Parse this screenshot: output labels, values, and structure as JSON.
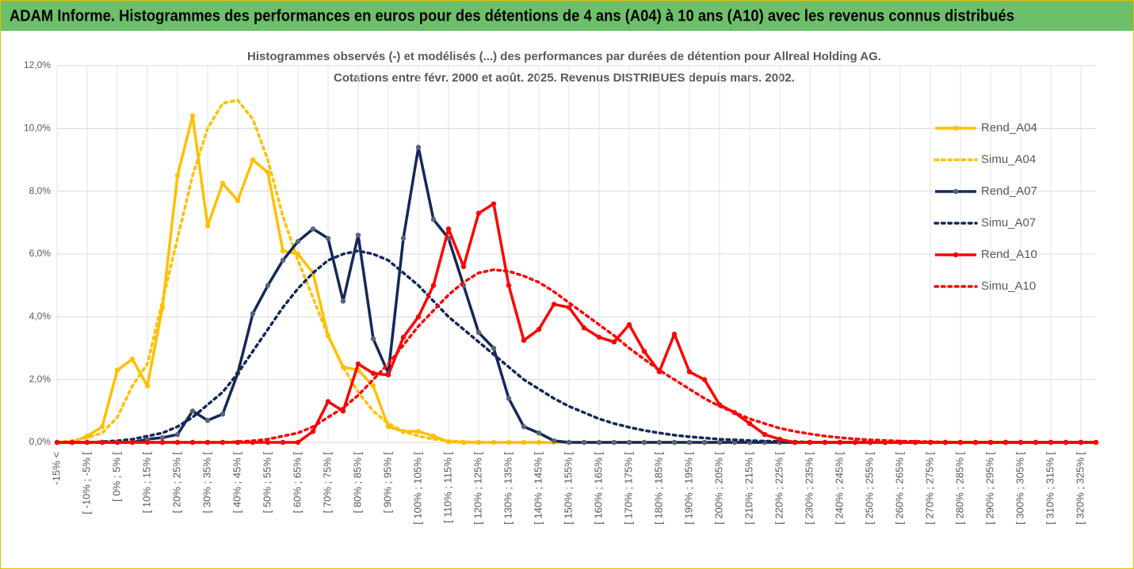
{
  "header": {
    "title": "ADAM Informe. Histogrammes des performances en euros pour des détentions de 4 ans (A04) à 10 ans (A10) avec les revenus connus distribués"
  },
  "chart_data": {
    "type": "line",
    "title": [
      "Histogrammes observés (-) et modélisés (...) des performances par durées de détention pour Allreal Holding AG.",
      "Cotations entre févr. 2000 et août. 2025. Revenus DISTRIBUES depuis mars. 2002."
    ],
    "categories": [
      "-15% <",
      null,
      "[ -10% ; -5% [",
      null,
      "[ 0% ; 5% [",
      null,
      "[ 10% ; 15% [",
      null,
      "[ 20% ; 25% [",
      null,
      "[ 30% ; 35% [",
      null,
      "[ 40% ; 45% [",
      null,
      "[ 50% ; 55% [",
      null,
      "[ 60% ; 65% [",
      null,
      "[ 70% ; 75% [",
      null,
      "[ 80% ; 85% [",
      null,
      "[ 90% ; 95% [",
      null,
      "[ 100% ; 105% [",
      null,
      "[ 110% ; 115% [",
      null,
      "[ 120% ; 125% [",
      null,
      "[ 130% ; 135% [",
      null,
      "[ 140% ; 145% [",
      null,
      "[ 150% ; 155% [",
      null,
      "[ 160% ; 165% [",
      null,
      "[ 170% ; 175% [",
      null,
      "[ 180% ; 185% [",
      null,
      "[ 190% ; 195% [",
      null,
      "[ 200% ; 205% [",
      null,
      "[ 210% ; 215% [",
      null,
      "[ 220% ; 225% [",
      null,
      "[ 230% ; 235% [",
      null,
      "[ 240% ; 245% [",
      null,
      "[ 250% ; 255% [",
      null,
      "[ 260% ; 265% [",
      null,
      "[ 270% ; 275% [",
      null,
      "[ 280% ; 285% [",
      null,
      "[ 290% ; 295% [",
      null,
      "[ 300% ; 305% [",
      null,
      "[ 310% ; 315% [",
      null,
      "[ 320% ; 325% [",
      null
    ],
    "series": [
      {
        "name": "Rend_A04",
        "color": "#ffc000",
        "style": "solid",
        "markers": true,
        "values": [
          0,
          0,
          0.2,
          0.5,
          2.3,
          2.65,
          1.8,
          4.3,
          8.5,
          10.4,
          6.9,
          8.25,
          7.7,
          9.0,
          8.6,
          6.1,
          6.0,
          5.4,
          3.4,
          2.4,
          2.3,
          1.8,
          0.5,
          0.35,
          0.35,
          0.2,
          0.02,
          0,
          0,
          0,
          0,
          0,
          0,
          0,
          0,
          0,
          0,
          0,
          0,
          0,
          0,
          0,
          0,
          0,
          0,
          0,
          0,
          0,
          0,
          0,
          0,
          0,
          0,
          0,
          0,
          0,
          0,
          0,
          0,
          0,
          0,
          0,
          0,
          0,
          0,
          0,
          0,
          0,
          0,
          0
        ]
      },
      {
        "name": "Simu_A04",
        "color": "#ffc000",
        "style": "dotted",
        "markers": false,
        "values": [
          0,
          0.05,
          0.15,
          0.3,
          0.8,
          1.8,
          2.5,
          4.5,
          6.5,
          8.5,
          10.0,
          10.8,
          10.9,
          10.3,
          9.0,
          7.2,
          5.8,
          4.6,
          3.4,
          2.4,
          1.6,
          1.0,
          0.6,
          0.35,
          0.2,
          0.1,
          0.05,
          0.02,
          0,
          0,
          0,
          0,
          0,
          0,
          0,
          0,
          0,
          0,
          0,
          0,
          0,
          0,
          0,
          0,
          0,
          0,
          0,
          0,
          0,
          0,
          0,
          0,
          0,
          0,
          0,
          0,
          0,
          0,
          0,
          0,
          0,
          0,
          0,
          0,
          0,
          0,
          0,
          0,
          0,
          0
        ]
      },
      {
        "name": "Rend_A07",
        "color": "#14285a",
        "style": "solid",
        "markers": true,
        "values": [
          0,
          0,
          0,
          0,
          0,
          0,
          0.1,
          0.15,
          0.25,
          1.0,
          0.7,
          0.9,
          2.2,
          4.1,
          5.0,
          5.8,
          6.4,
          6.8,
          6.5,
          4.5,
          6.6,
          3.3,
          2.2,
          6.5,
          9.4,
          7.1,
          6.5,
          5.0,
          3.5,
          3.0,
          1.4,
          0.5,
          0.3,
          0.05,
          0,
          0,
          0,
          0,
          0,
          0,
          0,
          0,
          0,
          0,
          0,
          0,
          0,
          0,
          0,
          0,
          0,
          0,
          0,
          0,
          0,
          0,
          0,
          0,
          0,
          0,
          0,
          0,
          0,
          0,
          0,
          0,
          0,
          0,
          0,
          0
        ]
      },
      {
        "name": "Simu_A07",
        "color": "#14285a",
        "style": "dotted",
        "markers": false,
        "values": [
          0,
          0,
          0,
          0.02,
          0.05,
          0.1,
          0.2,
          0.3,
          0.5,
          0.8,
          1.2,
          1.6,
          2.2,
          2.9,
          3.6,
          4.3,
          4.9,
          5.4,
          5.8,
          6.0,
          6.1,
          6.0,
          5.8,
          5.4,
          5.0,
          4.5,
          4.0,
          3.6,
          3.2,
          2.8,
          2.4,
          2.0,
          1.7,
          1.4,
          1.15,
          0.95,
          0.75,
          0.6,
          0.48,
          0.38,
          0.3,
          0.23,
          0.18,
          0.14,
          0.1,
          0.08,
          0.06,
          0.04,
          0.03,
          0.02,
          0.01,
          0,
          0,
          0,
          0,
          0,
          0,
          0,
          0,
          0,
          0,
          0,
          0,
          0,
          0,
          0,
          0,
          0,
          0,
          0
        ]
      },
      {
        "name": "Rend_A10",
        "color": "#ff0000",
        "style": "solid",
        "markers": true,
        "values": [
          0,
          0,
          0,
          0,
          0,
          0,
          0,
          0,
          0,
          0,
          0,
          0,
          0,
          0,
          0,
          0,
          0,
          0.35,
          1.3,
          1.0,
          2.5,
          2.2,
          2.15,
          3.35,
          4.0,
          5.0,
          6.8,
          5.6,
          7.3,
          7.6,
          5.0,
          3.25,
          3.6,
          4.4,
          4.3,
          3.65,
          3.35,
          3.2,
          3.75,
          2.9,
          2.25,
          3.45,
          2.25,
          2.0,
          1.2,
          0.95,
          0.6,
          0.25,
          0.1,
          0,
          0,
          0,
          0,
          0,
          0,
          0,
          0,
          0,
          0,
          0,
          0,
          0,
          0,
          0,
          0,
          0,
          0,
          0,
          0,
          0
        ]
      },
      {
        "name": "Simu_A10",
        "color": "#ff0000",
        "style": "dotted",
        "markers": false,
        "values": [
          0,
          0,
          0,
          0,
          0,
          0,
          0,
          0,
          0,
          0,
          0,
          0,
          0.02,
          0.05,
          0.1,
          0.2,
          0.3,
          0.5,
          0.8,
          1.1,
          1.5,
          2.0,
          2.5,
          3.1,
          3.7,
          4.2,
          4.7,
          5.1,
          5.4,
          5.5,
          5.45,
          5.3,
          5.1,
          4.8,
          4.45,
          4.1,
          3.75,
          3.4,
          3.0,
          2.65,
          2.3,
          2.0,
          1.7,
          1.4,
          1.15,
          0.95,
          0.75,
          0.6,
          0.45,
          0.35,
          0.27,
          0.2,
          0.15,
          0.11,
          0.08,
          0.06,
          0.04,
          0.03,
          0.02,
          0.01,
          0,
          0,
          0,
          0,
          0,
          0,
          0,
          0,
          0,
          0
        ]
      }
    ],
    "ylim": [
      0,
      12
    ],
    "yticks": [
      {
        "value": 0,
        "label": "0,0%"
      },
      {
        "value": 2,
        "label": "2,0%"
      },
      {
        "value": 4,
        "label": "4,0%"
      },
      {
        "value": 6,
        "label": "6,0%"
      },
      {
        "value": 8,
        "label": "8,0%"
      },
      {
        "value": 10,
        "label": "10,0%"
      },
      {
        "value": 12,
        "label": "12,0%"
      }
    ],
    "grid": true,
    "legend": "right"
  }
}
